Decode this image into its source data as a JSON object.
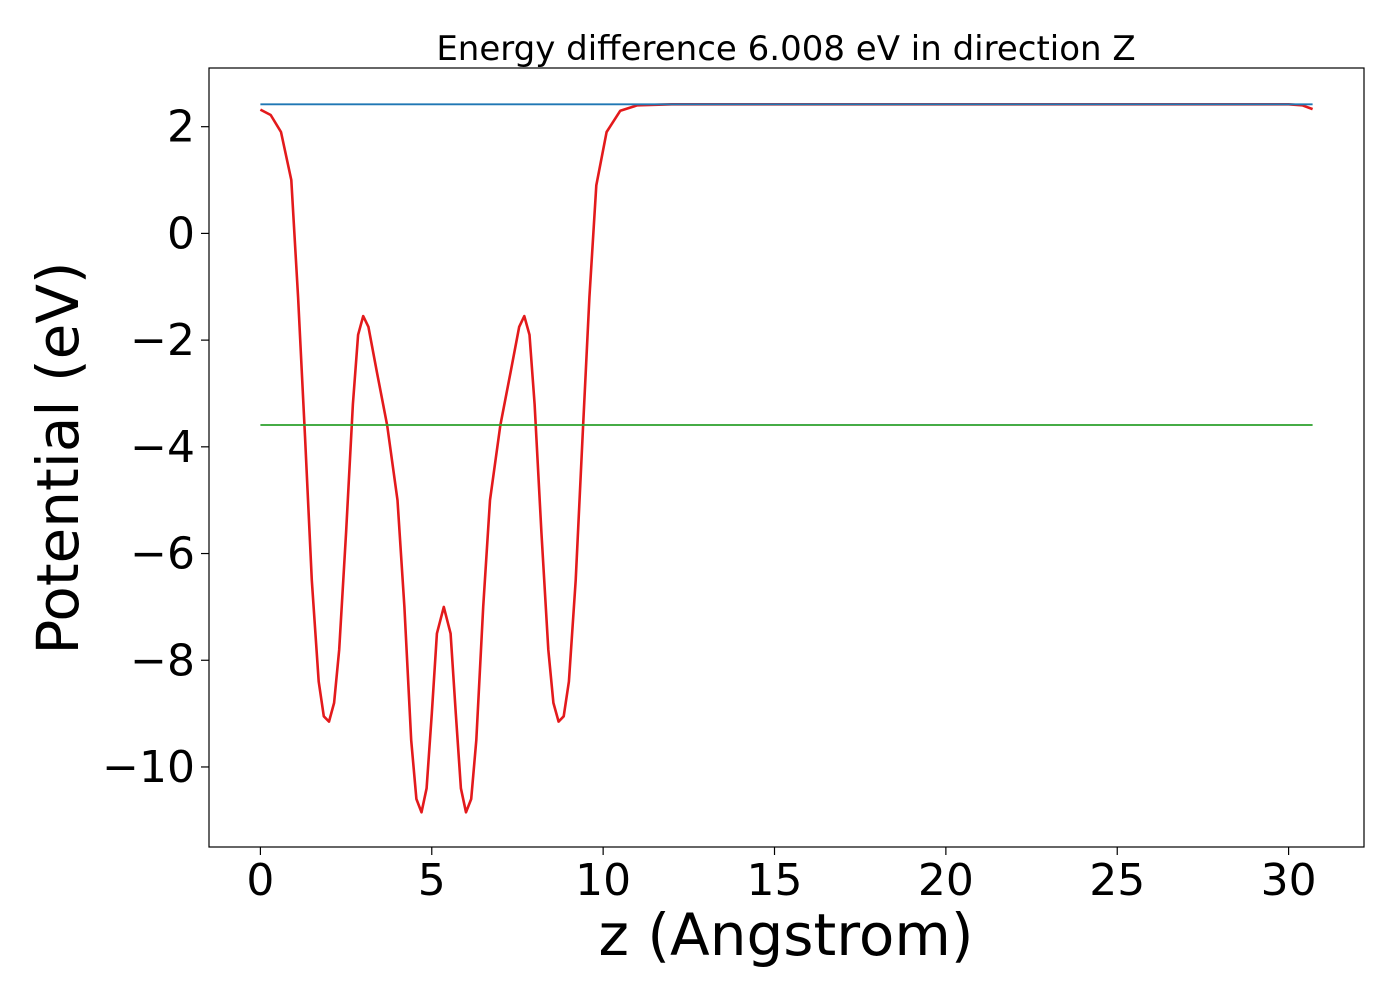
{
  "chart_data": {
    "type": "line",
    "title": "Energy difference 6.008 eV in direction Z",
    "xlabel": "z (Angstrom)",
    "ylabel": "Potential (eV)",
    "xlim": [
      -1.5,
      32.2
    ],
    "ylim": [
      -11.5,
      3.1
    ],
    "x_ticks": [
      0,
      5,
      10,
      15,
      20,
      25,
      30
    ],
    "x_tick_labels": [
      "0",
      "5",
      "10",
      "15",
      "20",
      "25",
      "30"
    ],
    "y_ticks": [
      2,
      0,
      -2,
      -4,
      -6,
      -8,
      -10
    ],
    "y_tick_labels": [
      "2",
      "0",
      "−2",
      "−4",
      "−6",
      "−8",
      "−10"
    ],
    "grid": false,
    "legend": "none",
    "series": [
      {
        "color": "#e31a1c",
        "points": [
          [
            0,
            2.32
          ],
          [
            0.3,
            2.22
          ],
          [
            0.6,
            1.9
          ],
          [
            0.9,
            1.0
          ],
          [
            1.1,
            -1.2
          ],
          [
            1.3,
            -3.8
          ],
          [
            1.5,
            -6.5
          ],
          [
            1.7,
            -8.4
          ],
          [
            1.85,
            -9.05
          ],
          [
            2.0,
            -9.15
          ],
          [
            2.15,
            -8.8
          ],
          [
            2.3,
            -7.8
          ],
          [
            2.5,
            -5.6
          ],
          [
            2.7,
            -3.2
          ],
          [
            2.85,
            -1.9
          ],
          [
            3.0,
            -1.55
          ],
          [
            3.15,
            -1.75
          ],
          [
            3.4,
            -2.6
          ],
          [
            3.7,
            -3.6
          ],
          [
            4.0,
            -5.0
          ],
          [
            4.2,
            -7.0
          ],
          [
            4.4,
            -9.5
          ],
          [
            4.55,
            -10.6
          ],
          [
            4.7,
            -10.85
          ],
          [
            4.85,
            -10.4
          ],
          [
            5.0,
            -9.0
          ],
          [
            5.15,
            -7.5
          ],
          [
            5.35,
            -7.0
          ],
          [
            5.55,
            -7.5
          ],
          [
            5.7,
            -9.0
          ],
          [
            5.85,
            -10.4
          ],
          [
            6.0,
            -10.85
          ],
          [
            6.15,
            -10.6
          ],
          [
            6.3,
            -9.5
          ],
          [
            6.5,
            -7.0
          ],
          [
            6.7,
            -5.0
          ],
          [
            7.0,
            -3.6
          ],
          [
            7.3,
            -2.6
          ],
          [
            7.55,
            -1.75
          ],
          [
            7.7,
            -1.55
          ],
          [
            7.85,
            -1.9
          ],
          [
            8.0,
            -3.2
          ],
          [
            8.2,
            -5.6
          ],
          [
            8.4,
            -7.8
          ],
          [
            8.55,
            -8.8
          ],
          [
            8.7,
            -9.15
          ],
          [
            8.85,
            -9.05
          ],
          [
            9.0,
            -8.4
          ],
          [
            9.2,
            -6.5
          ],
          [
            9.4,
            -3.8
          ],
          [
            9.6,
            -1.2
          ],
          [
            9.8,
            0.9
          ],
          [
            10.1,
            1.9
          ],
          [
            10.5,
            2.3
          ],
          [
            11.0,
            2.4
          ],
          [
            12.0,
            2.42
          ],
          [
            20.0,
            2.42
          ],
          [
            30.0,
            2.42
          ],
          [
            30.4,
            2.4
          ],
          [
            30.7,
            2.33
          ]
        ]
      },
      {
        "color": "#1f77b4",
        "points": [
          [
            0,
            2.42
          ],
          [
            30.7,
            2.42
          ]
        ]
      },
      {
        "color": "#2ca02c",
        "points": [
          [
            0,
            -3.59
          ],
          [
            30.7,
            -3.59
          ]
        ]
      }
    ]
  }
}
